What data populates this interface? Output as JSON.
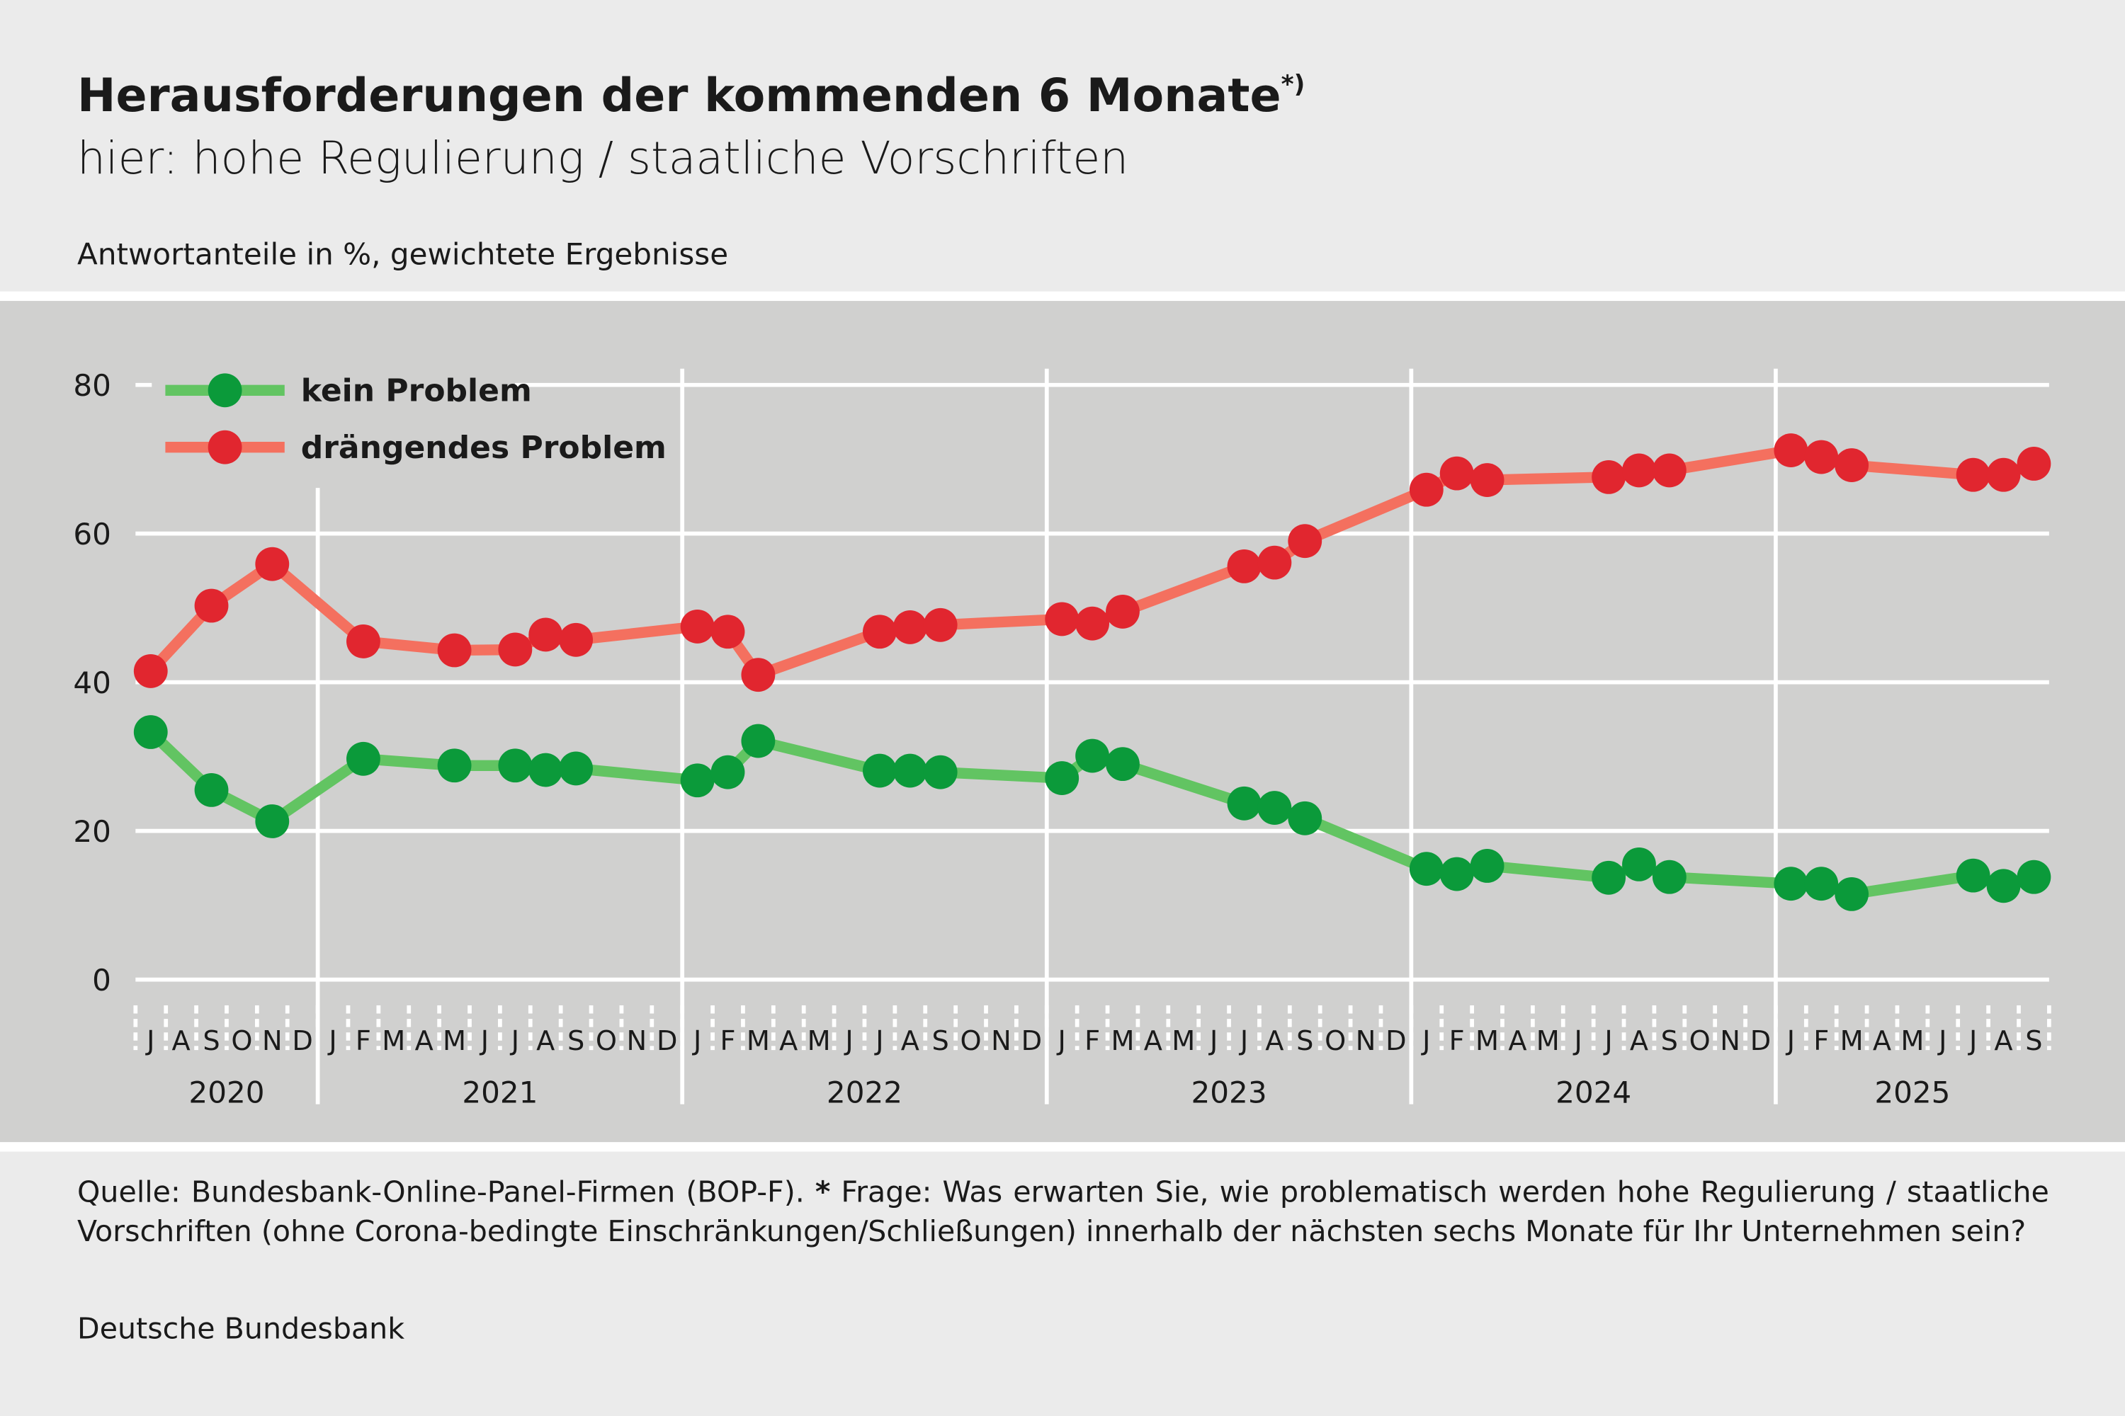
{
  "chart_data": {
    "type": "line",
    "title": "Herausforderungen der kommenden 6 Monate",
    "title_note": "*)",
    "subtitle": "hier: hohe Regulierung / staatliche Vorschriften",
    "unit_label": "Antwortanteile in %, gewichtete Ergebnisse",
    "x": [
      "2020-07",
      "2020-09",
      "2020-11",
      "2021-02",
      "2021-05",
      "2021-07",
      "2021-08",
      "2021-09",
      "2022-01",
      "2022-02",
      "2022-03",
      "2022-07",
      "2022-08",
      "2022-09",
      "2023-01",
      "2023-02",
      "2023-03",
      "2023-07",
      "2023-08",
      "2023-09",
      "2024-01",
      "2024-02",
      "2024-03",
      "2024-07",
      "2024-08",
      "2024-09",
      "2025-01",
      "2025-02",
      "2025-03",
      "2025-07",
      "2025-08",
      "2025-09"
    ],
    "series": [
      {
        "name": "kein Problem",
        "color": "#62c462",
        "marker_color": "#0b9a3a",
        "values": [
          33.3,
          25.5,
          21.3,
          29.7,
          28.8,
          28.8,
          28.2,
          28.4,
          26.8,
          27.9,
          32.1,
          28.1,
          28.1,
          27.9,
          27.1,
          30.1,
          29.0,
          23.7,
          23.1,
          21.7,
          14.9,
          14.2,
          15.3,
          13.7,
          15.5,
          13.8,
          12.9,
          12.9,
          11.5,
          14.0,
          12.6,
          13.8
        ]
      },
      {
        "name": "drängendes Problem",
        "color": "#f4705f",
        "marker_color": "#e1262f",
        "values": [
          41.5,
          50.3,
          55.9,
          45.5,
          44.3,
          44.4,
          46.4,
          45.7,
          47.5,
          46.8,
          41.0,
          46.8,
          47.4,
          47.7,
          48.5,
          47.9,
          49.5,
          55.6,
          56.1,
          59.0,
          65.9,
          68.1,
          67.2,
          67.6,
          68.5,
          68.5,
          71.2,
          70.3,
          69.2,
          67.9,
          67.9,
          69.4
        ]
      }
    ],
    "ylim": [
      0,
      80
    ],
    "yticks": [
      0,
      20,
      40,
      60,
      80
    ],
    "grid": true,
    "legend": "top-left",
    "xticks": [
      {
        "value": "2020-07",
        "label": "J"
      },
      {
        "value": "2020-08",
        "label": "A"
      },
      {
        "value": "2020-09",
        "label": "S"
      },
      {
        "value": "2020-10",
        "label": "O"
      },
      {
        "value": "2020-11",
        "label": "N"
      },
      {
        "value": "2020-12",
        "label": "D"
      },
      {
        "value": "2021-01",
        "label": "J"
      },
      {
        "value": "2021-02",
        "label": "F"
      },
      {
        "value": "2021-03",
        "label": "M"
      },
      {
        "value": "2021-04",
        "label": "A"
      },
      {
        "value": "2021-05",
        "label": "M"
      },
      {
        "value": "2021-06",
        "label": "J"
      },
      {
        "value": "2021-07",
        "label": "J"
      },
      {
        "value": "2021-08",
        "label": "A"
      },
      {
        "value": "2021-09",
        "label": "S"
      },
      {
        "value": "2021-10",
        "label": "O"
      },
      {
        "value": "2021-11",
        "label": "N"
      },
      {
        "value": "2021-12",
        "label": "D"
      },
      {
        "value": "2022-01",
        "label": "J"
      },
      {
        "value": "2022-02",
        "label": "F"
      },
      {
        "value": "2022-03",
        "label": "M"
      },
      {
        "value": "2022-04",
        "label": "A"
      },
      {
        "value": "2022-05",
        "label": "M"
      },
      {
        "value": "2022-06",
        "label": "J"
      },
      {
        "value": "2022-07",
        "label": "J"
      },
      {
        "value": "2022-08",
        "label": "A"
      },
      {
        "value": "2022-09",
        "label": "S"
      },
      {
        "value": "2022-10",
        "label": "O"
      },
      {
        "value": "2022-11",
        "label": "N"
      },
      {
        "value": "2022-12",
        "label": "D"
      },
      {
        "value": "2023-01",
        "label": "J"
      },
      {
        "value": "2023-02",
        "label": "F"
      },
      {
        "value": "2023-03",
        "label": "M"
      },
      {
        "value": "2023-04",
        "label": "A"
      },
      {
        "value": "2023-05",
        "label": "M"
      },
      {
        "value": "2023-06",
        "label": "J"
      },
      {
        "value": "2023-07",
        "label": "J"
      },
      {
        "value": "2023-08",
        "label": "A"
      },
      {
        "value": "2023-09",
        "label": "S"
      },
      {
        "value": "2023-10",
        "label": "O"
      },
      {
        "value": "2023-11",
        "label": "N"
      },
      {
        "value": "2023-12",
        "label": "D"
      },
      {
        "value": "2024-01",
        "label": "J"
      },
      {
        "value": "2024-02",
        "label": "F"
      },
      {
        "value": "2024-03",
        "label": "M"
      },
      {
        "value": "2024-04",
        "label": "A"
      },
      {
        "value": "2024-05",
        "label": "M"
      },
      {
        "value": "2024-06",
        "label": "J"
      },
      {
        "value": "2024-07",
        "label": "J"
      },
      {
        "value": "2024-08",
        "label": "A"
      },
      {
        "value": "2024-09",
        "label": "S"
      },
      {
        "value": "2024-10",
        "label": "O"
      },
      {
        "value": "2024-11",
        "label": "N"
      },
      {
        "value": "2024-12",
        "label": "D"
      },
      {
        "value": "2025-01",
        "label": "J"
      },
      {
        "value": "2025-02",
        "label": "F"
      },
      {
        "value": "2025-03",
        "label": "M"
      },
      {
        "value": "2025-04",
        "label": "A"
      },
      {
        "value": "2025-05",
        "label": "M"
      },
      {
        "value": "2025-06",
        "label": "J"
      },
      {
        "value": "2025-07",
        "label": "J"
      },
      {
        "value": "2025-08",
        "label": "A"
      },
      {
        "value": "2025-09",
        "label": "S"
      }
    ],
    "years": [
      "2020",
      "2021",
      "2022",
      "2023",
      "2024",
      "2025"
    ],
    "source": "Quelle: Bundesbank-Online-Panel-Firmen (BOP-F).",
    "footnote_marker": "*",
    "footnote": "Frage: Was erwarten Sie, wie problematisch werden hohe Regulierung / staatliche Vorschriften (ohne Corona-bedingte Einschränkungen/Schließungen) innerhalb der nächsten sechs Monate für Ihr Unternehmen sein?",
    "publisher": "Deutsche Bundesbank"
  }
}
